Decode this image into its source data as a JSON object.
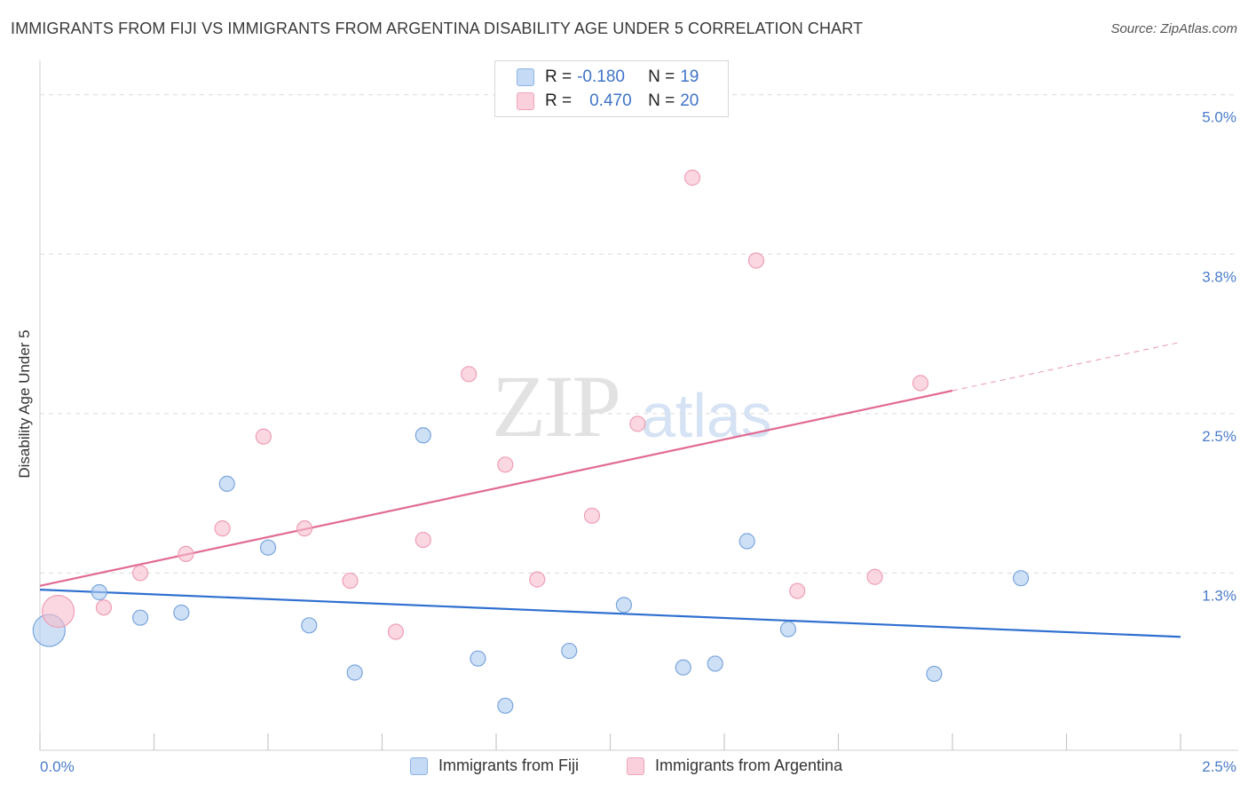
{
  "header": {
    "title": "IMMIGRANTS FROM FIJI VS IMMIGRANTS FROM ARGENTINA DISABILITY AGE UNDER 5 CORRELATION CHART",
    "source": "Source: ZipAtlas.com"
  },
  "watermark": {
    "zip": "ZIP",
    "atlas": "atlas"
  },
  "legend": {
    "fiji": {
      "r_label": "R =",
      "r_value": "-0.180",
      "n_label": "N =",
      "n_value": "19",
      "color": "#aecbf0"
    },
    "argentina": {
      "r_label": "R =",
      "r_value": "0.470",
      "n_label": "N =",
      "n_value": "20",
      "color": "#f7bccd"
    }
  },
  "series_labels": {
    "fiji": "Immigrants from Fiji",
    "argentina": "Immigrants from Argentina"
  },
  "chart_data": {
    "type": "scatter",
    "title": "IMMIGRANTS FROM FIJI VS IMMIGRANTS FROM ARGENTINA DISABILITY AGE UNDER 5 CORRELATION CHART",
    "xlabel": "",
    "ylabel": "Disability Age Under 5",
    "xlim": [
      0.0,
      2.5
    ],
    "ylim": [
      0.0,
      5.2
    ],
    "x_tick_labels": [
      "0.0%",
      "2.5%"
    ],
    "y_ticks": [
      1.25,
      2.5,
      3.75,
      5.0
    ],
    "y_tick_labels": [
      "1.3%",
      "2.5%",
      "3.8%",
      "5.0%"
    ],
    "grid": true,
    "series": [
      {
        "name": "Immigrants from Fiji",
        "color": "#aecbf0",
        "stroke": "#7aa5de",
        "line_color": "#2f6fd0",
        "trend": {
          "x": [
            0.0,
            2.5
          ],
          "y": [
            1.12,
            0.75
          ]
        },
        "points": [
          {
            "x": 0.02,
            "y": 0.8,
            "s": 2
          },
          {
            "x": 0.13,
            "y": 1.1
          },
          {
            "x": 0.22,
            "y": 0.9
          },
          {
            "x": 0.31,
            "y": 0.94
          },
          {
            "x": 0.41,
            "y": 1.95
          },
          {
            "x": 0.5,
            "y": 1.45
          },
          {
            "x": 0.59,
            "y": 0.84
          },
          {
            "x": 0.69,
            "y": 0.47
          },
          {
            "x": 0.84,
            "y": 2.33
          },
          {
            "x": 0.96,
            "y": 0.58
          },
          {
            "x": 1.02,
            "y": 0.21
          },
          {
            "x": 1.16,
            "y": 0.64
          },
          {
            "x": 1.28,
            "y": 1.0
          },
          {
            "x": 1.41,
            "y": 0.51
          },
          {
            "x": 1.48,
            "y": 0.54
          },
          {
            "x": 1.55,
            "y": 1.5
          },
          {
            "x": 1.64,
            "y": 0.81
          },
          {
            "x": 1.96,
            "y": 0.46
          },
          {
            "x": 2.15,
            "y": 1.21
          }
        ]
      },
      {
        "name": "Immigrants from Argentina",
        "color": "#f7bccd",
        "stroke": "#ee9fb6",
        "line_color": "#e26a93",
        "trend": {
          "x": [
            0.0,
            2.0
          ],
          "y": [
            1.15,
            2.68
          ]
        },
        "trend_dashed": {
          "x": [
            2.0,
            2.5
          ],
          "y": [
            2.68,
            3.06
          ]
        },
        "points": [
          {
            "x": 0.04,
            "y": 0.95,
            "s": 2
          },
          {
            "x": 0.14,
            "y": 0.98
          },
          {
            "x": 0.22,
            "y": 1.25
          },
          {
            "x": 0.32,
            "y": 1.4
          },
          {
            "x": 0.4,
            "y": 1.6
          },
          {
            "x": 0.49,
            "y": 2.32
          },
          {
            "x": 0.58,
            "y": 1.6
          },
          {
            "x": 0.68,
            "y": 1.19
          },
          {
            "x": 0.78,
            "y": 0.79
          },
          {
            "x": 0.84,
            "y": 1.51
          },
          {
            "x": 0.94,
            "y": 2.81
          },
          {
            "x": 1.02,
            "y": 2.1
          },
          {
            "x": 1.09,
            "y": 1.2
          },
          {
            "x": 1.21,
            "y": 1.7
          },
          {
            "x": 1.31,
            "y": 2.42
          },
          {
            "x": 1.43,
            "y": 4.35
          },
          {
            "x": 1.57,
            "y": 3.7
          },
          {
            "x": 1.66,
            "y": 1.11
          },
          {
            "x": 1.83,
            "y": 1.22
          },
          {
            "x": 1.93,
            "y": 2.74
          }
        ]
      }
    ]
  }
}
